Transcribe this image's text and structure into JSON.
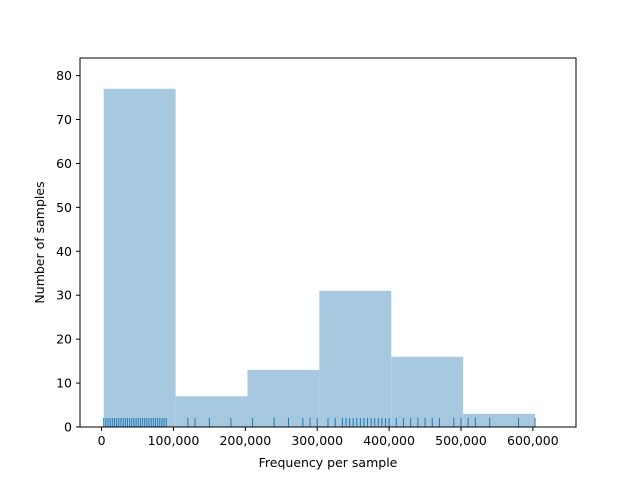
{
  "chart_data": {
    "type": "bar",
    "subtype": "histogram-with-rug",
    "title": "",
    "xlabel": "Frequency per sample",
    "ylabel": "Number of samples",
    "xlim": [
      -30000,
      660000
    ],
    "ylim": [
      0,
      84
    ],
    "bins": [
      {
        "start": 3000,
        "end": 103000,
        "count": 77
      },
      {
        "start": 103000,
        "end": 203000,
        "count": 7
      },
      {
        "start": 203000,
        "end": 303000,
        "count": 13
      },
      {
        "start": 303000,
        "end": 403000,
        "count": 31
      },
      {
        "start": 403000,
        "end": 503000,
        "count": 16
      },
      {
        "start": 503000,
        "end": 603000,
        "count": 3
      }
    ],
    "x_ticks": [
      {
        "value": 0,
        "label": "0"
      },
      {
        "value": 100000,
        "label": "100,000"
      },
      {
        "value": 200000,
        "label": "200,000"
      },
      {
        "value": 300000,
        "label": "300,000"
      },
      {
        "value": 400000,
        "label": "400,000"
      },
      {
        "value": 500000,
        "label": "500,000"
      },
      {
        "value": 600000,
        "label": "600,000"
      }
    ],
    "y_ticks": [
      {
        "value": 0,
        "label": "0"
      },
      {
        "value": 10,
        "label": "10"
      },
      {
        "value": 20,
        "label": "20"
      },
      {
        "value": 30,
        "label": "30"
      },
      {
        "value": 40,
        "label": "40"
      },
      {
        "value": 50,
        "label": "50"
      },
      {
        "value": 60,
        "label": "60"
      },
      {
        "value": 70,
        "label": "70"
      },
      {
        "value": 80,
        "label": "80"
      }
    ],
    "rug_values": [
      3000,
      6000,
      9000,
      12000,
      15000,
      18000,
      21000,
      24000,
      27000,
      30000,
      33000,
      36000,
      39000,
      42000,
      45000,
      48000,
      51000,
      54000,
      57000,
      60000,
      63000,
      66000,
      69000,
      72000,
      75000,
      78000,
      81000,
      84000,
      87000,
      90000,
      120000,
      130000,
      150000,
      180000,
      210000,
      240000,
      260000,
      280000,
      290000,
      300000,
      315000,
      325000,
      335000,
      340000,
      345000,
      350000,
      355000,
      360000,
      365000,
      370000,
      375000,
      380000,
      385000,
      390000,
      395000,
      400000,
      410000,
      420000,
      430000,
      440000,
      450000,
      460000,
      470000,
      490000,
      500000,
      510000,
      520000,
      540000,
      580000,
      603000
    ],
    "bar_color": "#a6c9e0",
    "rug_color": "#1f77b4",
    "grid": false,
    "legend": "none"
  }
}
